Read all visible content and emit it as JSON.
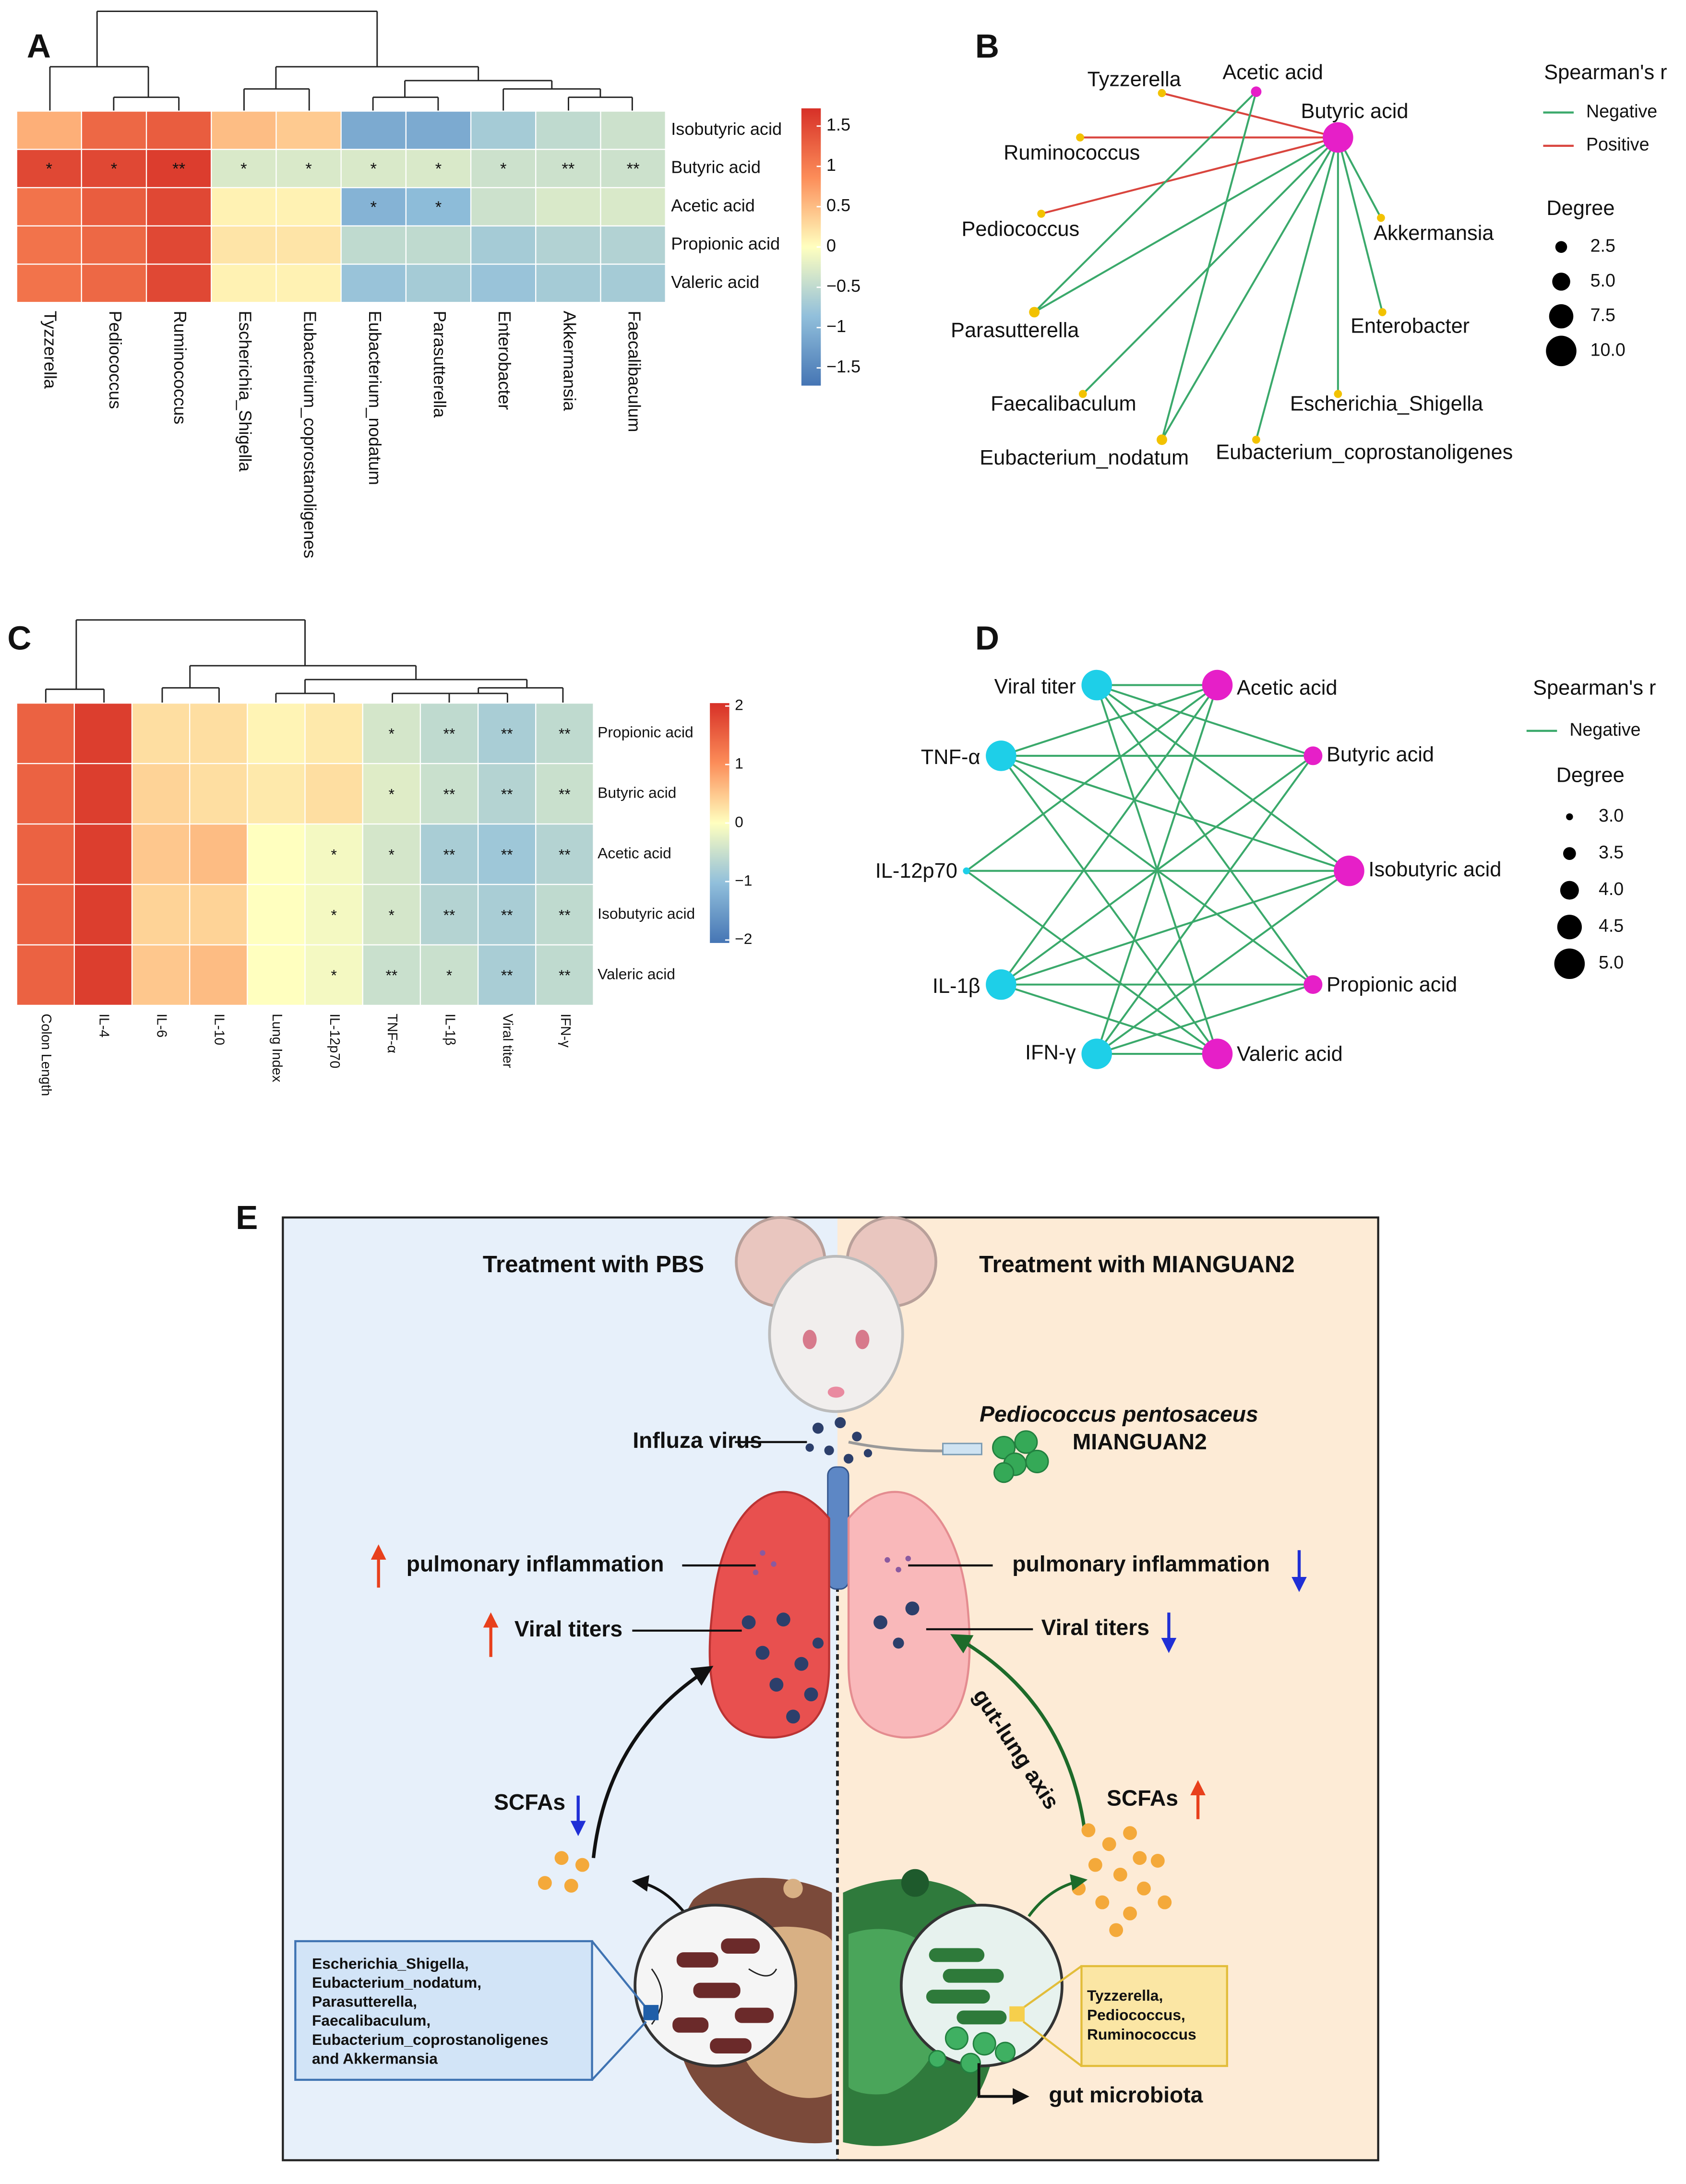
{
  "panel_labels": [
    "A",
    "B",
    "C",
    "D",
    "E"
  ],
  "chart_data": [
    {
      "type": "heatmap",
      "rows": [
        "Isobutyric acid",
        "Butyric acid",
        "Acetic acid",
        "Propionic acid",
        "Valeric acid"
      ],
      "categories": [
        "Tyzzerella",
        "Pediococcus",
        "Ruminococcus",
        "Escherichia_Shigella",
        "Eubacterium_coprostanoligenes",
        "Eubacterium_nodatum",
        "Parasutterella",
        "Enterobacter",
        "Akkermansia",
        "Faecalibaculum"
      ],
      "values": [
        [
          0.6,
          1.2,
          1.3,
          0.5,
          0.4,
          -1.1,
          -1.1,
          -0.7,
          -0.5,
          -0.4
        ],
        [
          1.5,
          1.5,
          1.6,
          -0.3,
          -0.3,
          -0.3,
          -0.3,
          -0.4,
          -0.4,
          -0.4
        ],
        [
          1.1,
          1.3,
          1.5,
          0.1,
          0.1,
          -1.0,
          -0.9,
          -0.4,
          -0.3,
          -0.3
        ],
        [
          1.1,
          1.2,
          1.5,
          0.2,
          0.2,
          -0.5,
          -0.5,
          -0.7,
          -0.6,
          -0.6
        ],
        [
          1.1,
          1.2,
          1.5,
          0.1,
          0.1,
          -0.8,
          -0.7,
          -0.8,
          -0.7,
          -0.7
        ]
      ],
      "annotations": [
        [
          null,
          null,
          null,
          null,
          null,
          null,
          null,
          null,
          null,
          null
        ],
        [
          "*",
          "*",
          "**",
          "*",
          "*",
          "*",
          "*",
          "*",
          "**",
          "**"
        ],
        [
          null,
          null,
          null,
          null,
          null,
          "*",
          "*",
          null,
          null,
          null
        ],
        [
          null,
          null,
          null,
          null,
          null,
          null,
          null,
          null,
          null,
          null
        ],
        [
          null,
          null,
          null,
          null,
          null,
          null,
          null,
          null,
          null,
          null
        ]
      ],
      "colorscale": [
        "#4575b4",
        "#91bfdb",
        "#ffffbf",
        "#fc8d59",
        "#d73027"
      ],
      "zlim": [
        -1.72,
        1.72
      ],
      "zticks": [
        1.5,
        1,
        0.5,
        0,
        {
          "value": -0.5,
          "label": "−0.5"
        },
        {
          "value": -1,
          "label": "−1"
        },
        {
          "value": -1.5,
          "label": "−1.5"
        }
      ]
    },
    {
      "type": "heatmap",
      "rows": [
        "Propionic acid",
        "Butyric acid",
        "Acetic acid",
        "Isobutyric acid",
        "Valeric acid"
      ],
      "categories": [
        "Colon Length",
        "IL-4",
        "IL-6",
        "IL-10",
        "Lung Index",
        "IL-12p70",
        "TNF-α",
        "IL-1β",
        "Viral titer",
        "IFN-γ"
      ],
      "values": [
        [
          1.5,
          1.9,
          0.3,
          0.3,
          0.1,
          0.2,
          -0.4,
          -0.6,
          -0.8,
          -0.6
        ],
        [
          1.5,
          1.9,
          0.4,
          0.3,
          0.2,
          0.3,
          -0.3,
          -0.5,
          -0.7,
          -0.5
        ],
        [
          1.5,
          1.9,
          0.5,
          0.6,
          0.0,
          -0.1,
          -0.4,
          -0.8,
          -0.9,
          -0.7
        ],
        [
          1.5,
          1.9,
          0.4,
          0.4,
          0.0,
          -0.1,
          -0.4,
          -0.7,
          -0.8,
          -0.6
        ],
        [
          1.5,
          1.9,
          0.5,
          0.6,
          0.0,
          -0.1,
          -0.5,
          -0.5,
          -0.8,
          -0.6
        ]
      ],
      "annotations": [
        [
          null,
          null,
          null,
          null,
          null,
          null,
          "*",
          "**",
          "**",
          "**"
        ],
        [
          null,
          null,
          null,
          null,
          null,
          null,
          "*",
          "**",
          "**",
          "**"
        ],
        [
          null,
          null,
          null,
          null,
          null,
          "*",
          "*",
          "**",
          "**",
          "**"
        ],
        [
          null,
          null,
          null,
          null,
          null,
          "*",
          "*",
          "**",
          "**",
          "**"
        ],
        [
          null,
          null,
          null,
          null,
          null,
          "*",
          "**",
          "*",
          "**",
          "**"
        ]
      ],
      "colorscale": [
        "#4575b4",
        "#91bfdb",
        "#ffffbf",
        "#fc8d59",
        "#d73027"
      ],
      "zlim": [
        -2.05,
        2.05
      ],
      "zticks": [
        2,
        1,
        0,
        {
          "value": -1,
          "label": "−1"
        },
        {
          "value": -2,
          "label": "−2"
        }
      ]
    }
  ],
  "panel_b": {
    "legend_title": "Spearman's r",
    "edge_types": [
      {
        "name": "Negative",
        "color": "#3aa96b"
      },
      {
        "name": "Positive",
        "color": "#d9453e"
      }
    ],
    "size_title": "Degree",
    "size_ticks": [
      2.5,
      {
        "value": 5,
        "label": "5.0"
      },
      7.5,
      {
        "value": 10,
        "label": "10.0"
      }
    ],
    "nodes": [
      {
        "label": "Acetic acid",
        "degree": 2,
        "color": "#e61fc8"
      },
      {
        "label": "Butyric acid",
        "degree": 10,
        "color": "#e61fc8"
      },
      {
        "label": "Tyzzerella",
        "degree": 1,
        "color": "#f2c200"
      },
      {
        "label": "Ruminococcus",
        "degree": 1,
        "color": "#f2c200"
      },
      {
        "label": "Pediococcus",
        "degree": 1,
        "color": "#f2c200"
      },
      {
        "label": "Parasutterella",
        "degree": 2,
        "color": "#f2c200"
      },
      {
        "label": "Faecalibaculum",
        "degree": 1,
        "color": "#f2c200"
      },
      {
        "label": "Eubacterium_nodatum",
        "degree": 2,
        "color": "#f2c200"
      },
      {
        "label": "Eubacterium_coprostanoligenes",
        "degree": 1,
        "color": "#f2c200"
      },
      {
        "label": "Escherichia_Shigella",
        "degree": 1,
        "color": "#f2c200"
      },
      {
        "label": "Enterobacter",
        "degree": 1,
        "color": "#f2c200"
      },
      {
        "label": "Akkermansia",
        "degree": 1,
        "color": "#f2c200"
      }
    ],
    "edges": [
      [
        1,
        2,
        1
      ],
      [
        1,
        3,
        1
      ],
      [
        1,
        4,
        1
      ],
      [
        1,
        5,
        0
      ],
      [
        1,
        6,
        0
      ],
      [
        1,
        7,
        0
      ],
      [
        1,
        8,
        0
      ],
      [
        1,
        9,
        0
      ],
      [
        1,
        10,
        0
      ],
      [
        1,
        11,
        0
      ],
      [
        0,
        5,
        0
      ],
      [
        0,
        7,
        0
      ]
    ]
  },
  "panel_d": {
    "legend_title": "Spearman's r",
    "edge_types": [
      {
        "name": "Negative",
        "color": "#3aa96b"
      }
    ],
    "size_title": "Degree",
    "size_ticks": [
      {
        "value": 3,
        "label": "3.0"
      },
      3.5,
      {
        "value": 4,
        "label": "4.0"
      },
      4.5,
      {
        "value": 5,
        "label": "5.0"
      }
    ],
    "nodes": [
      {
        "label": "Viral titer",
        "degree": 5,
        "color": "#1ecfe8"
      },
      {
        "label": "TNF-α",
        "degree": 5,
        "color": "#1ecfe8"
      },
      {
        "label": "IL-12p70",
        "degree": 3,
        "color": "#1ecfe8"
      },
      {
        "label": "IL-1β",
        "degree": 5,
        "color": "#1ecfe8"
      },
      {
        "label": "IFN-γ",
        "degree": 5,
        "color": "#1ecfe8"
      },
      {
        "label": "Acetic acid",
        "degree": 5,
        "color": "#e61fc8"
      },
      {
        "label": "Butyric acid",
        "degree": 4,
        "color": "#e61fc8"
      },
      {
        "label": "Isobutyric acid",
        "degree": 5,
        "color": "#e61fc8"
      },
      {
        "label": "Propionic acid",
        "degree": 4,
        "color": "#e61fc8"
      },
      {
        "label": "Valeric acid",
        "degree": 5,
        "color": "#e61fc8"
      }
    ],
    "edges": [
      [
        0,
        5,
        0
      ],
      [
        0,
        6,
        0
      ],
      [
        0,
        7,
        0
      ],
      [
        0,
        8,
        0
      ],
      [
        0,
        9,
        0
      ],
      [
        1,
        5,
        0
      ],
      [
        1,
        6,
        0
      ],
      [
        1,
        7,
        0
      ],
      [
        1,
        8,
        0
      ],
      [
        1,
        9,
        0
      ],
      [
        2,
        5,
        0
      ],
      [
        2,
        7,
        0
      ],
      [
        2,
        9,
        0
      ],
      [
        3,
        5,
        0
      ],
      [
        3,
        6,
        0
      ],
      [
        3,
        7,
        0
      ],
      [
        3,
        8,
        0
      ],
      [
        3,
        9,
        0
      ],
      [
        4,
        5,
        0
      ],
      [
        4,
        6,
        0
      ],
      [
        4,
        7,
        0
      ],
      [
        4,
        8,
        0
      ],
      [
        4,
        9,
        0
      ]
    ]
  },
  "panel_e": {
    "left_title": "Treatment with PBS",
    "right_title": "Treatment with MIANGUAN2",
    "virus": "Influza virus",
    "probiotic_species": "Pediococcus pentosaceus",
    "probiotic_strain": "MIANGUAN2",
    "left_inflammation": "pulmonary inflammation",
    "right_inflammation": "pulmonary inflammation",
    "left_titers": "Viral titers",
    "right_titers": "Viral titers",
    "left_scfa": "SCFAs",
    "right_scfa": "SCFAs",
    "axis": "gut-lung axis",
    "left_taxa": [
      "Escherichia_Shigella,",
      "Eubacterium_nodatum,",
      "Parasutterella,",
      "Faecalibaculum,",
      "Eubacterium_coprostanoligenes",
      "and Akkermansia"
    ],
    "right_taxa": [
      "Tyzzerella,",
      "Pediococcus,",
      "Ruminococcus"
    ],
    "microbiota": "gut microbiota"
  }
}
